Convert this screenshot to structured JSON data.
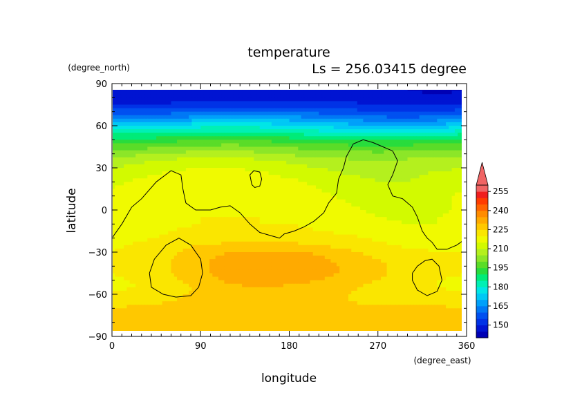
{
  "chart_data": {
    "type": "heatmap",
    "title": "temperature",
    "subtitle": "Ls = 256.03415 degree",
    "xlabel": "longitude",
    "ylabel": "latitude",
    "x_units": "(degree_east)",
    "y_units": "(degree_north)",
    "xlim": [
      0,
      360
    ],
    "ylim": [
      -90,
      90
    ],
    "x_ticks": [
      0,
      90,
      180,
      270,
      360
    ],
    "y_ticks": [
      90,
      60,
      30,
      0,
      -30,
      -60,
      -90
    ],
    "x_tick_labels": [
      "0",
      "90",
      "180",
      "270",
      "360"
    ],
    "y_tick_labels": [
      "90",
      "60",
      "30",
      "0",
      "−30",
      "−60",
      "−90"
    ],
    "colorbar": {
      "levels": [
        140,
        145,
        150,
        155,
        160,
        165,
        170,
        175,
        180,
        185,
        190,
        195,
        200,
        205,
        210,
        215,
        220,
        225,
        230,
        235,
        240,
        245,
        250,
        255,
        260
      ],
      "tick_values": [
        150,
        165,
        180,
        195,
        210,
        225,
        240,
        255
      ],
      "tick_labels": [
        "150",
        "165",
        "180",
        "195",
        "210",
        "225",
        "240",
        "255"
      ],
      "colors": [
        "#0000b4",
        "#0014d2",
        "#0032e6",
        "#0050f0",
        "#0078f5",
        "#00a0fa",
        "#00c8f5",
        "#00e6e6",
        "#00f0b4",
        "#00eb78",
        "#28dc3c",
        "#5adc28",
        "#8ce628",
        "#b4f01e",
        "#d2fa00",
        "#f0fa00",
        "#fae600",
        "#ffc800",
        "#ffaa00",
        "#ff8c00",
        "#ff6400",
        "#ff3c00",
        "#f01e1e",
        "#f06464"
      ],
      "extend": "max"
    },
    "temperature_grid": {
      "lat": [
        85,
        80,
        75,
        70,
        65,
        60,
        55,
        50,
        45,
        40,
        35,
        30,
        25,
        20,
        15,
        10,
        5,
        0,
        -5,
        -10,
        -15,
        -20,
        -25,
        -30,
        -35,
        -40,
        -45,
        -50,
        -55,
        -60,
        -65,
        -70,
        -75,
        -80,
        -85
      ],
      "lon": [
        0,
        30,
        60,
        90,
        120,
        150,
        180,
        210,
        240,
        270,
        300,
        330,
        360
      ],
      "values": [
        [
          145,
          145,
          145,
          145,
          145,
          146,
          146,
          145,
          145,
          145,
          145,
          144,
          145
        ],
        [
          147,
          147,
          147,
          147,
          148,
          148,
          148,
          148,
          148,
          147,
          147,
          146,
          147
        ],
        [
          150,
          150,
          151,
          151,
          152,
          152,
          152,
          152,
          151,
          150,
          149,
          149,
          150
        ],
        [
          158,
          157,
          158,
          159,
          160,
          160,
          159,
          158,
          157,
          155,
          154,
          155,
          158
        ],
        [
          166,
          165,
          166,
          168,
          169,
          169,
          168,
          166,
          164,
          162,
          161,
          163,
          166
        ],
        [
          175,
          174,
          176,
          178,
          179,
          178,
          176,
          174,
          172,
          170,
          169,
          171,
          175
        ],
        [
          184,
          183,
          185,
          186,
          187,
          186,
          184,
          182,
          180,
          179,
          178,
          180,
          184
        ],
        [
          192,
          191,
          193,
          194,
          195,
          194,
          192,
          190,
          189,
          188,
          188,
          190,
          192
        ],
        [
          198,
          198,
          200,
          201,
          202,
          201,
          199,
          198,
          197,
          196,
          197,
          198,
          198
        ],
        [
          203,
          204,
          206,
          207,
          207,
          206,
          204,
          203,
          202,
          201,
          202,
          203,
          203
        ],
        [
          207,
          209,
          211,
          212,
          212,
          211,
          209,
          207,
          206,
          205,
          206,
          207,
          207
        ],
        [
          210,
          212,
          214,
          215,
          215,
          214,
          212,
          210,
          208,
          207,
          208,
          209,
          210
        ],
        [
          212,
          214,
          216,
          217,
          217,
          216,
          214,
          212,
          210,
          209,
          209,
          211,
          212
        ],
        [
          214,
          216,
          218,
          218,
          218,
          217,
          216,
          214,
          212,
          210,
          210,
          212,
          214
        ],
        [
          215,
          217,
          218,
          219,
          219,
          218,
          217,
          215,
          213,
          211,
          211,
          213,
          215
        ],
        [
          216,
          217,
          218,
          219,
          219,
          219,
          218,
          216,
          214,
          212,
          212,
          214,
          216
        ],
        [
          216,
          217,
          219,
          219,
          219,
          219,
          218,
          217,
          215,
          213,
          213,
          214,
          216
        ],
        [
          216,
          217,
          219,
          219,
          219,
          219,
          219,
          218,
          216,
          214,
          213,
          214,
          216
        ],
        [
          216,
          218,
          219,
          220,
          220,
          220,
          219,
          218,
          217,
          215,
          214,
          215,
          216
        ],
        [
          216,
          218,
          219,
          220,
          220,
          220,
          220,
          219,
          218,
          216,
          215,
          215,
          216
        ],
        [
          217,
          218,
          220,
          221,
          221,
          221,
          221,
          220,
          219,
          217,
          216,
          216,
          217
        ],
        [
          218,
          219,
          221,
          222,
          223,
          223,
          223,
          222,
          221,
          219,
          217,
          217,
          218
        ],
        [
          219,
          221,
          223,
          225,
          226,
          226,
          226,
          225,
          223,
          221,
          219,
          219,
          219
        ],
        [
          220,
          222,
          224,
          228,
          230,
          231,
          231,
          229,
          226,
          223,
          221,
          220,
          220
        ],
        [
          220,
          222,
          225,
          229,
          232,
          234,
          234,
          231,
          228,
          225,
          222,
          221,
          220
        ],
        [
          220,
          222,
          225,
          229,
          232,
          235,
          235,
          232,
          229,
          226,
          223,
          221,
          220
        ],
        [
          220,
          222,
          225,
          229,
          232,
          235,
          234,
          232,
          229,
          226,
          223,
          221,
          220
        ],
        [
          219,
          221,
          224,
          228,
          231,
          233,
          232,
          230,
          228,
          225,
          222,
          220,
          219
        ],
        [
          219,
          220,
          222,
          226,
          229,
          230,
          229,
          228,
          226,
          223,
          221,
          220,
          219
        ],
        [
          221,
          222,
          224,
          226,
          227,
          227,
          227,
          226,
          225,
          223,
          222,
          221,
          221
        ],
        [
          223,
          224,
          225,
          226,
          226,
          226,
          226,
          226,
          225,
          224,
          223,
          223,
          223
        ],
        [
          225,
          226,
          226,
          226,
          226,
          226,
          226,
          226,
          226,
          226,
          226,
          226,
          225
        ],
        [
          226,
          226,
          226,
          226,
          226,
          226,
          226,
          226,
          226,
          226,
          226,
          226,
          226
        ],
        [
          226,
          226,
          226,
          226,
          226,
          226,
          226,
          226,
          226,
          226,
          226,
          226,
          226
        ],
        [
          226,
          226,
          226,
          226,
          226,
          226,
          226,
          226,
          226,
          226,
          226,
          226,
          226
        ]
      ]
    },
    "topography_contour": [
      {
        "name": "continent-outline",
        "points": [
          [
            0,
            -20
          ],
          [
            10,
            -10
          ],
          [
            20,
            2
          ],
          [
            30,
            8
          ],
          [
            45,
            20
          ],
          [
            60,
            28
          ],
          [
            70,
            25
          ],
          [
            72,
            15
          ],
          [
            75,
            5
          ],
          [
            85,
            0
          ],
          [
            100,
            0
          ],
          [
            110,
            2
          ],
          [
            120,
            3
          ],
          [
            130,
            -2
          ],
          [
            140,
            -10
          ],
          [
            150,
            -16
          ],
          [
            160,
            -18
          ],
          [
            165,
            -19
          ],
          [
            170,
            -20
          ],
          [
            175,
            -17
          ],
          [
            185,
            -15
          ],
          [
            195,
            -12
          ],
          [
            205,
            -8
          ],
          [
            215,
            -2
          ],
          [
            220,
            5
          ],
          [
            228,
            12
          ],
          [
            230,
            22
          ],
          [
            235,
            30
          ],
          [
            238,
            38
          ],
          [
            245,
            47
          ],
          [
            255,
            50
          ],
          [
            265,
            48
          ],
          [
            275,
            45
          ],
          [
            285,
            42
          ],
          [
            290,
            35
          ],
          [
            285,
            25
          ],
          [
            280,
            18
          ],
          [
            285,
            10
          ],
          [
            295,
            8
          ],
          [
            305,
            2
          ],
          [
            310,
            -5
          ],
          [
            315,
            -15
          ],
          [
            320,
            -20
          ],
          [
            325,
            -23
          ],
          [
            330,
            -28
          ],
          [
            340,
            -28
          ],
          [
            350,
            -25
          ],
          [
            360,
            -20
          ]
        ]
      },
      {
        "name": "north-islet",
        "points": [
          [
            142,
            18
          ],
          [
            140,
            25
          ],
          [
            144,
            28
          ],
          [
            150,
            27
          ],
          [
            152,
            22
          ],
          [
            150,
            17
          ],
          [
            145,
            16
          ],
          [
            142,
            18
          ]
        ]
      },
      {
        "name": "southwest-basin",
        "points": [
          [
            40,
            -55
          ],
          [
            38,
            -45
          ],
          [
            43,
            -35
          ],
          [
            55,
            -25
          ],
          [
            68,
            -20
          ],
          [
            80,
            -25
          ],
          [
            90,
            -35
          ],
          [
            92,
            -45
          ],
          [
            88,
            -55
          ],
          [
            80,
            -61
          ],
          [
            65,
            -62
          ],
          [
            52,
            -60
          ],
          [
            40,
            -55
          ]
        ]
      },
      {
        "name": "southeast-basin",
        "points": [
          [
            305,
            -45
          ],
          [
            310,
            -40
          ],
          [
            318,
            -36
          ],
          [
            325,
            -35
          ],
          [
            332,
            -40
          ],
          [
            335,
            -50
          ],
          [
            330,
            -58
          ],
          [
            320,
            -61
          ],
          [
            310,
            -57
          ],
          [
            305,
            -50
          ],
          [
            305,
            -45
          ]
        ]
      }
    ]
  }
}
